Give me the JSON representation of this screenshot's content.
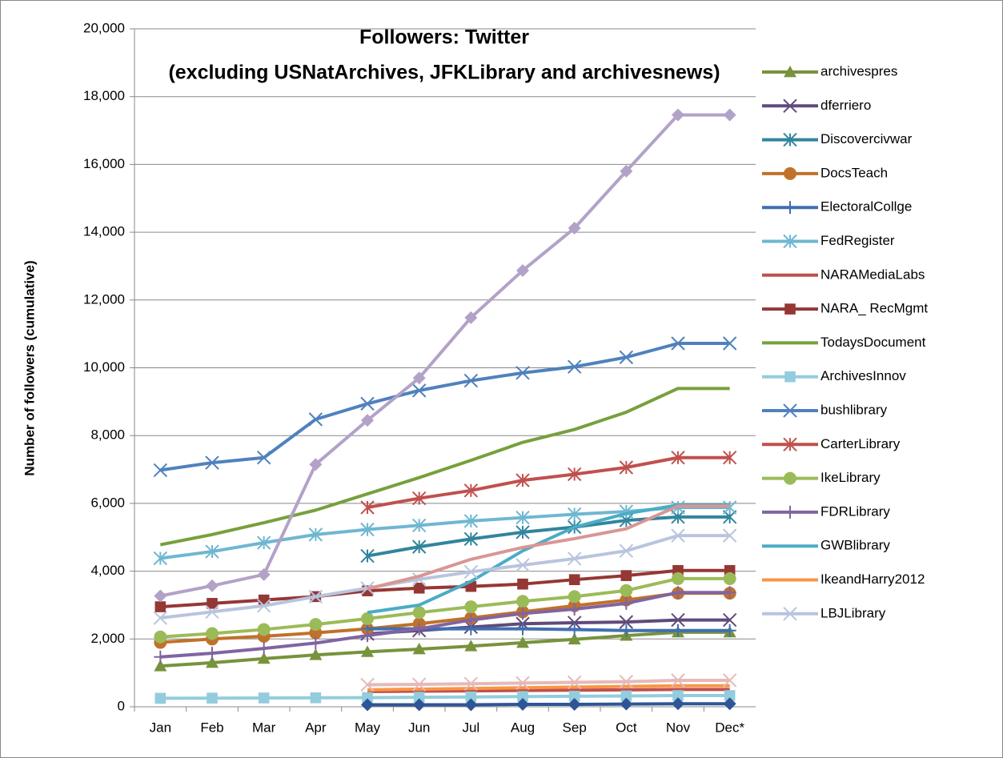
{
  "chart_data": {
    "type": "line",
    "title": "Followers: Twitter",
    "subtitle": "(excluding USNatArchives, JFKLibrary and archivesnews)",
    "y_label": "Number of followers  (cumulative)",
    "categories": [
      "Jan",
      "Feb",
      "Mar",
      "Apr",
      "May",
      "Jun",
      "Jul",
      "Aug",
      "Sep",
      "Oct",
      "Nov",
      "Dec*"
    ],
    "ylim": [
      0,
      20000
    ],
    "yticks": [
      0,
      {
        "value": 2000,
        "label": "2,000"
      },
      {
        "value": 4000,
        "label": "4,000"
      },
      {
        "value": 6000,
        "label": "6,000"
      },
      {
        "value": 8000,
        "label": "8,000"
      },
      {
        "value": 10000,
        "label": "10,000"
      },
      {
        "value": 12000,
        "label": "12,000"
      },
      {
        "value": 14000,
        "label": "14,000"
      },
      {
        "value": 16000,
        "label": "16,000"
      },
      {
        "value": 18000,
        "label": "18,000"
      },
      {
        "value": 20000,
        "label": "20,000"
      }
    ],
    "grid": true,
    "legend": "right",
    "series": [
      {
        "name": "archivespres",
        "color": "#77933c",
        "marker": "triangle",
        "values": [
          1200,
          1300,
          1420,
          1530,
          1620,
          1700,
          1790,
          1890,
          1990,
          2100,
          2200,
          2200
        ]
      },
      {
        "name": "dferriero",
        "color": "#604a7b",
        "marker": "x",
        "values": [
          null,
          null,
          null,
          null,
          2150,
          2250,
          2350,
          2450,
          2480,
          2500,
          2560,
          2560
        ]
      },
      {
        "name": "Discovercivwar",
        "color": "#31859c",
        "marker": "asterisk",
        "values": [
          null,
          null,
          null,
          null,
          4450,
          4720,
          4950,
          5150,
          5300,
          5500,
          5600,
          5600
        ]
      },
      {
        "name": "DocsTeach",
        "color": "#c0712a",
        "marker": "circle",
        "values": [
          1900,
          2000,
          2080,
          2180,
          2300,
          2450,
          2620,
          2800,
          2980,
          3150,
          3350,
          3350
        ]
      },
      {
        "name": "ElectoralCollge",
        "color": "#3f6fb0",
        "marker": "plus",
        "values": [
          null,
          null,
          null,
          null,
          2300,
          2300,
          2300,
          2300,
          2280,
          2250,
          2250,
          2250
        ]
      },
      {
        "name": "FedRegister",
        "color": "#6fb7d1",
        "marker": "asterisk",
        "values": [
          4380,
          4580,
          4840,
          5080,
          5230,
          5350,
          5480,
          5580,
          5680,
          5760,
          5880,
          5880
        ]
      },
      {
        "name": "NARAMediaLabs",
        "color": "#c0504d",
        "marker": "none",
        "values": [
          null,
          null,
          null,
          null,
          450,
          460,
          470,
          480,
          490,
          500,
          510,
          510
        ]
      },
      {
        "name": "NARA_ RecMgmt",
        "color": "#953735",
        "marker": "square",
        "values": [
          2950,
          3050,
          3150,
          3250,
          3420,
          3500,
          3550,
          3620,
          3750,
          3870,
          4020,
          4020
        ]
      },
      {
        "name": "TodaysDocument",
        "color": "#77a03c",
        "marker": "none",
        "values": [
          4780,
          5080,
          5430,
          5800,
          6280,
          6760,
          7270,
          7800,
          8180,
          8690,
          9390,
          9390
        ]
      },
      {
        "name": "ArchivesInnov",
        "color": "#93cddd",
        "marker": "square",
        "values": [
          250,
          255,
          260,
          265,
          270,
          280,
          290,
          300,
          310,
          320,
          330,
          330
        ]
      },
      {
        "name": "bushlibrary",
        "color": "#4f81bd",
        "marker": "x",
        "values": [
          6980,
          7200,
          7350,
          8480,
          8940,
          9330,
          9620,
          9850,
          10030,
          10310,
          10720,
          10720
        ]
      },
      {
        "name": "CarterLibrary",
        "color": "#c0504d",
        "marker": "asterisk",
        "values": [
          null,
          null,
          null,
          null,
          5880,
          6150,
          6380,
          6680,
          6860,
          7060,
          7350,
          7350
        ]
      },
      {
        "name": "IkeLibrary",
        "color": "#9bbb59",
        "marker": "circle",
        "values": [
          2060,
          2160,
          2280,
          2430,
          2600,
          2780,
          2950,
          3110,
          3250,
          3430,
          3780,
          3780
        ]
      },
      {
        "name": "FDRLibrary",
        "color": "#8064a2",
        "marker": "plus",
        "values": [
          1470,
          1580,
          1720,
          1880,
          2100,
          2300,
          2560,
          2750,
          2880,
          3050,
          3370,
          3370
        ]
      },
      {
        "name": "GWBlibrary",
        "color": "#4bacc6",
        "marker": "none",
        "values": [
          null,
          null,
          null,
          null,
          2780,
          3000,
          3700,
          4600,
          5300,
          5700,
          5950,
          5950
        ]
      },
      {
        "name": "IkeandHarry2012",
        "color": "#f79646",
        "marker": "none",
        "values": [
          null,
          null,
          null,
          null,
          500,
          520,
          540,
          560,
          580,
          600,
          620,
          620
        ]
      },
      {
        "name": "LBJLibrary",
        "color": "#b9c4de",
        "marker": "x",
        "values": [
          2620,
          2800,
          2980,
          3250,
          3500,
          3760,
          3980,
          4180,
          4370,
          4600,
          5050,
          5050
        ]
      },
      {
        "color": "#b3a2c7",
        "marker": "diamond",
        "values": [
          3270,
          3570,
          3900,
          7150,
          8450,
          9700,
          11480,
          12870,
          14120,
          15800,
          17460,
          17460
        ]
      },
      {
        "color": "#d99694",
        "marker": "none",
        "values": [
          null,
          null,
          null,
          null,
          3480,
          3850,
          4350,
          4700,
          4960,
          5250,
          5920,
          5920
        ]
      },
      {
        "color": "#e6b9b8",
        "marker": "x",
        "values": [
          null,
          null,
          null,
          null,
          650,
          660,
          680,
          700,
          720,
          740,
          780,
          780
        ]
      },
      {
        "color": "#2f5597",
        "marker": "diamond",
        "values": [
          null,
          null,
          null,
          null,
          60,
          60,
          60,
          70,
          70,
          80,
          90,
          90
        ]
      }
    ]
  }
}
